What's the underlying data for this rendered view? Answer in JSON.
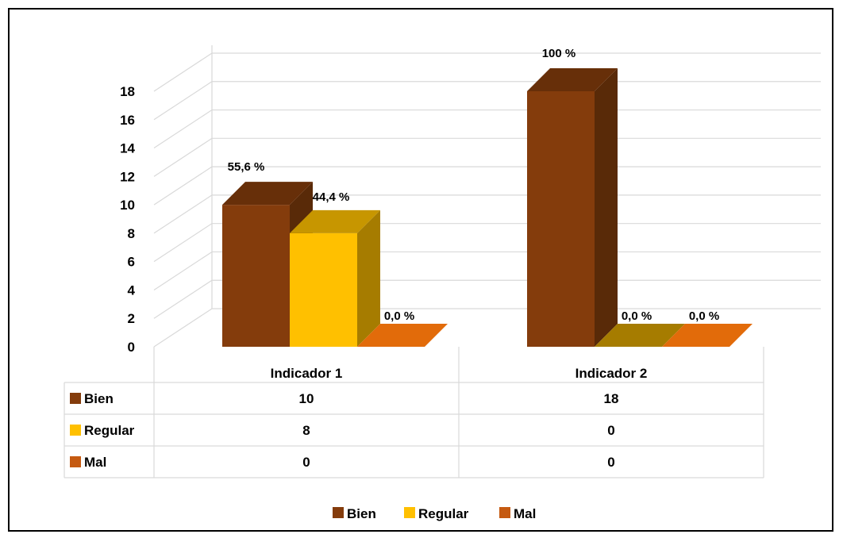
{
  "chart_data": {
    "type": "bar",
    "categories": [
      "Indicador 1",
      "Indicador 2"
    ],
    "series": [
      {
        "name": "Bien",
        "color": "#843c0c",
        "values": [
          10,
          18
        ],
        "labels": [
          "55,6 %",
          "100 %"
        ]
      },
      {
        "name": "Regular",
        "color": "#ffc000",
        "values": [
          8,
          0
        ],
        "labels": [
          "44,4 %",
          "0,0 %"
        ]
      },
      {
        "name": "Mal",
        "color": "#c55a11",
        "values": [
          0,
          0
        ],
        "labels": [
          "0,0 %",
          "0,0 %"
        ]
      }
    ],
    "y_ticks": [
      "0",
      "2",
      "4",
      "6",
      "8",
      "10",
      "12",
      "14",
      "16",
      "18"
    ],
    "ylim": [
      0,
      18
    ],
    "grid": true,
    "style": "3d-column",
    "data_table": true,
    "legend": {
      "position": "bottom",
      "items": [
        "Bien",
        "Regular",
        "Mal"
      ]
    },
    "colors": {
      "bien_side": "#592a08",
      "regular_side": "#a67c00",
      "mal_top": "#e26b0a"
    }
  }
}
